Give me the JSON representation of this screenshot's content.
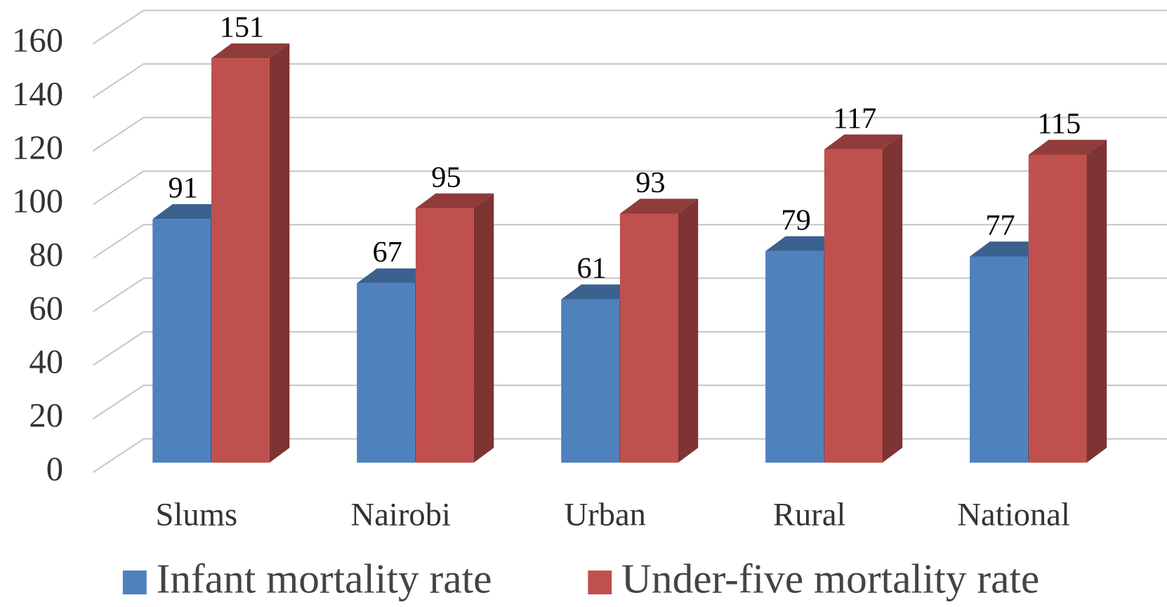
{
  "chart_data": {
    "type": "bar3d",
    "categories": [
      "Slums",
      "Nairobi",
      "Urban",
      "Rural",
      "National"
    ],
    "series": [
      {
        "name": "Infant mortality rate",
        "color": "#4f81bd",
        "values": [
          91,
          67,
          61,
          79,
          77
        ]
      },
      {
        "name": "Under-five mortality rate",
        "color": "#c0504d",
        "values": [
          151,
          95,
          93,
          117,
          115
        ]
      }
    ],
    "ylim": [
      0,
      160
    ],
    "yticks": [
      0,
      20,
      40,
      60,
      80,
      100,
      120,
      140,
      160
    ],
    "grid": true,
    "legend": "bottom"
  }
}
